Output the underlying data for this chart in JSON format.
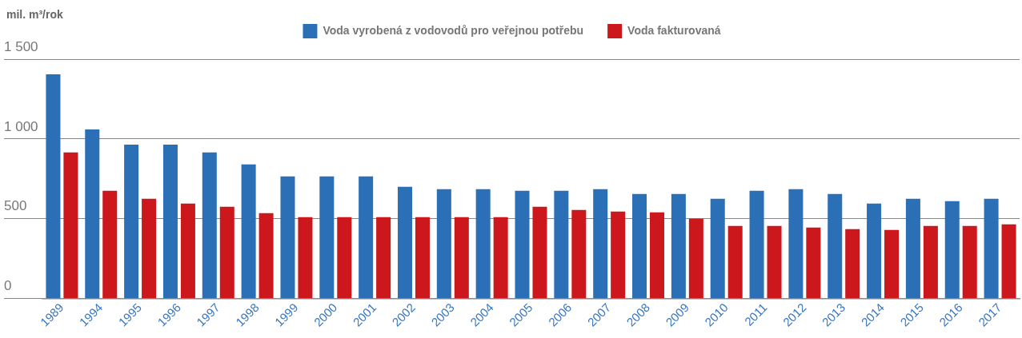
{
  "chart_data": {
    "type": "bar",
    "ylabel": "mil. m³/rok",
    "categories": [
      "1989",
      "1994",
      "1995",
      "1996",
      "1997",
      "1998",
      "1999",
      "2000",
      "2001",
      "2002",
      "2003",
      "2004",
      "2005",
      "2006",
      "2007",
      "2008",
      "2009",
      "2010",
      "2011",
      "2012",
      "2013",
      "2014",
      "2015",
      "2016",
      "2017"
    ],
    "series": [
      {
        "name": "Voda vyrobená z vodovodů pro veřejnou potřebu",
        "color": "#2b6fb6",
        "values": [
          1405,
          1060,
          965,
          965,
          915,
          840,
          765,
          765,
          765,
          700,
          685,
          685,
          675,
          675,
          685,
          655,
          655,
          625,
          675,
          685,
          655,
          595,
          625,
          610,
          625
        ]
      },
      {
        "name": "Voda fakturovaná",
        "color": "#cc171d",
        "values": [
          915,
          675,
          625,
          595,
          575,
          535,
          510,
          510,
          510,
          510,
          510,
          510,
          575,
          555,
          545,
          540,
          500,
          455,
          455,
          445,
          435,
          430,
          455,
          455,
          465
        ]
      }
    ],
    "ylim": [
      0,
      1500
    ],
    "yticks": [
      0,
      500,
      1000,
      1500
    ],
    "grid": "y",
    "legend": "top"
  }
}
